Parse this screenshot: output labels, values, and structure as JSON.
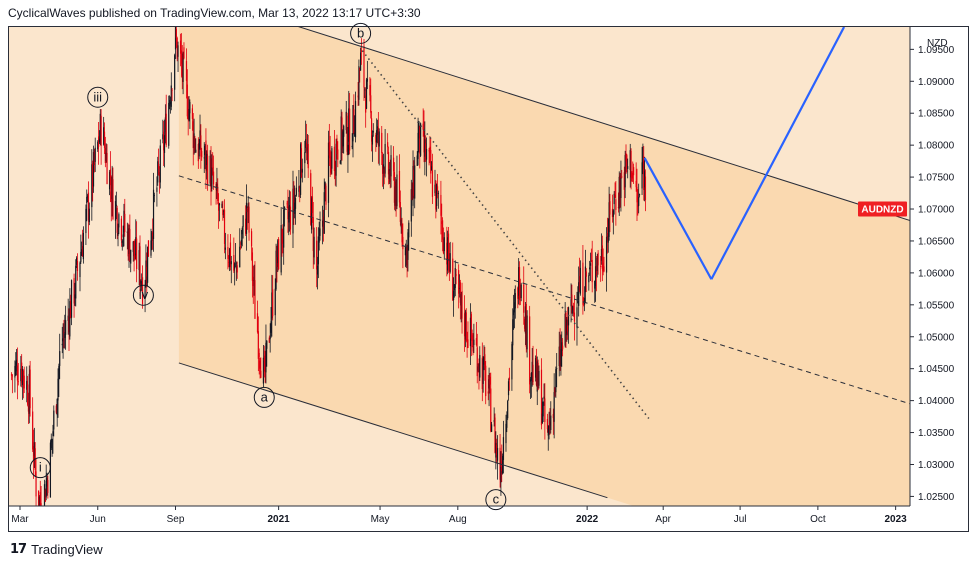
{
  "header": {
    "text": "CyclicalWaves published on TradingView.com, Mar 13, 2022 13:17 UTC+3:30"
  },
  "footer": {
    "brand": "TradingView",
    "logo_glyph": "17"
  },
  "colors": {
    "up_candle": "#131722",
    "down_candle": "#e2000f",
    "forecast_line": "#2962ff",
    "channel_fill": "#fad9b0",
    "background": "#fbe6cd",
    "price_tag": "#ef1f22"
  },
  "chart_data": {
    "type": "candlestick",
    "symbol": "AUDNZD",
    "currency": "NZD",
    "y_ticks": [
      "1.09500",
      "1.09000",
      "1.08500",
      "1.08000",
      "1.07500",
      "1.07000",
      "1.06500",
      "1.06000",
      "1.05500",
      "1.05000",
      "1.04500",
      "1.04000",
      "1.03500",
      "1.03000",
      "1.02500"
    ],
    "x_ticks": [
      "Mar",
      "Jun",
      "Sep",
      "2021",
      "May",
      "Aug",
      "2022",
      "Apr",
      "Jul",
      "Oct",
      "2023"
    ],
    "ylim": [
      1.0235,
      1.0985
    ],
    "xlim": [
      "2020-02-17",
      "2023-01-18"
    ],
    "price_tag": {
      "label": "AUDNZD",
      "value": 1.07
    },
    "price_path": [
      [
        "2020-02-20",
        1.044
      ],
      [
        "2020-03-01",
        1.046
      ],
      [
        "2020-03-12",
        1.041
      ],
      [
        "2020-03-20",
        1.027
      ],
      [
        "2020-03-26",
        1.023
      ],
      [
        "2020-04-05",
        1.03
      ],
      [
        "2020-04-18",
        1.048
      ],
      [
        "2020-05-05",
        1.058
      ],
      [
        "2020-05-20",
        1.07
      ],
      [
        "2020-06-05",
        1.083
      ],
      [
        "2020-06-20",
        1.071
      ],
      [
        "2020-07-05",
        1.066
      ],
      [
        "2020-07-20",
        1.061
      ],
      [
        "2020-07-25",
        1.058
      ],
      [
        "2020-08-05",
        1.069
      ],
      [
        "2020-08-20",
        1.082
      ],
      [
        "2020-09-01",
        1.0965
      ],
      [
        "2020-09-10",
        1.091
      ],
      [
        "2020-09-25",
        1.08
      ],
      [
        "2020-10-10",
        1.077
      ],
      [
        "2020-10-25",
        1.068
      ],
      [
        "2020-11-10",
        1.06
      ],
      [
        "2020-11-25",
        1.07
      ],
      [
        "2020-12-05",
        1.053
      ],
      [
        "2020-12-15",
        1.043
      ],
      [
        "2020-12-28",
        1.06
      ],
      [
        "2021-01-05",
        1.066
      ],
      [
        "2021-01-20",
        1.071
      ],
      [
        "2021-02-01",
        1.081
      ],
      [
        "2021-02-15",
        1.06
      ],
      [
        "2021-03-01",
        1.077
      ],
      [
        "2021-03-15",
        1.081
      ],
      [
        "2021-03-30",
        1.083
      ],
      [
        "2021-04-08",
        1.093
      ],
      [
        "2021-04-20",
        1.084
      ],
      [
        "2021-05-05",
        1.078
      ],
      [
        "2021-05-20",
        1.073
      ],
      [
        "2021-06-01",
        1.063
      ],
      [
        "2021-06-15",
        1.081
      ],
      [
        "2021-06-25",
        1.078
      ],
      [
        "2021-07-10",
        1.07
      ],
      [
        "2021-07-25",
        1.059
      ],
      [
        "2021-08-10",
        1.052
      ],
      [
        "2021-08-25",
        1.047
      ],
      [
        "2021-09-05",
        1.042
      ],
      [
        "2021-09-15",
        1.033
      ],
      [
        "2021-09-20",
        1.029
      ],
      [
        "2021-09-30",
        1.043
      ],
      [
        "2021-10-10",
        1.058
      ],
      [
        "2021-10-15",
        1.06
      ],
      [
        "2021-10-25",
        1.046
      ],
      [
        "2021-11-05",
        1.042
      ],
      [
        "2021-11-15",
        1.034
      ],
      [
        "2021-11-25",
        1.043
      ],
      [
        "2021-12-05",
        1.05
      ],
      [
        "2021-12-20",
        1.057
      ],
      [
        "2022-01-05",
        1.06
      ],
      [
        "2022-01-20",
        1.063
      ],
      [
        "2022-02-01",
        1.071
      ],
      [
        "2022-02-15",
        1.076
      ],
      [
        "2022-02-22",
        1.0775
      ],
      [
        "2022-03-02",
        1.07
      ],
      [
        "2022-03-08",
        1.077
      ],
      [
        "2022-03-13",
        1.0705
      ]
    ],
    "wave_labels": [
      {
        "text": "i",
        "x": "2020-03-25",
        "y": 1.0295,
        "pos": "below"
      },
      {
        "text": "iii",
        "x": "2020-06-01",
        "y": 1.0875,
        "pos": "above"
      },
      {
        "text": "iv",
        "x": "2020-07-25",
        "y": 1.0565,
        "pos": "below"
      },
      {
        "text": "a",
        "x": "2020-12-15",
        "y": 1.0405,
        "pos": "below"
      },
      {
        "text": "b",
        "x": "2021-04-08",
        "y": 1.0975,
        "pos": "above"
      },
      {
        "text": "c",
        "x": "2021-09-15",
        "y": 1.0245,
        "pos": "below"
      }
    ],
    "channel": {
      "upper": [
        [
          "2020-09-05",
          1.1045
        ],
        [
          "2023-01-18",
          1.0682
        ]
      ],
      "lower": [
        [
          "2020-09-05",
          1.0459
        ],
        [
          "2022-01-25",
          1.0248
        ]
      ],
      "middle": [
        [
          "2020-09-05",
          1.0752
        ],
        [
          "2023-01-18",
          1.0395
        ]
      ]
    },
    "dotted_trendline": [
      [
        "2021-04-10",
        1.0948
      ],
      [
        "2022-03-15",
        1.0372
      ]
    ],
    "forecast_path": [
      [
        "2022-03-10",
        1.078
      ],
      [
        "2022-05-28",
        1.059
      ],
      [
        "2022-11-01",
        1.0985
      ]
    ]
  }
}
